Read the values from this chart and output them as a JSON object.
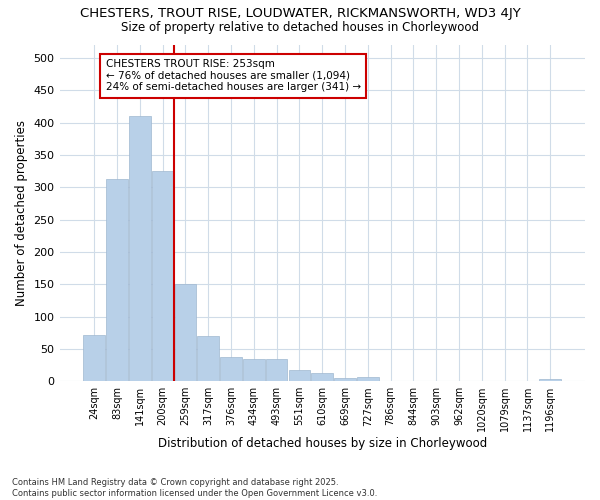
{
  "title": "CHESTERS, TROUT RISE, LOUDWATER, RICKMANSWORTH, WD3 4JY",
  "subtitle": "Size of property relative to detached houses in Chorleywood",
  "xlabel": "Distribution of detached houses by size in Chorleywood",
  "ylabel": "Number of detached properties",
  "categories": [
    "24sqm",
    "83sqm",
    "141sqm",
    "200sqm",
    "259sqm",
    "317sqm",
    "376sqm",
    "434sqm",
    "493sqm",
    "551sqm",
    "610sqm",
    "669sqm",
    "727sqm",
    "786sqm",
    "844sqm",
    "903sqm",
    "962sqm",
    "1020sqm",
    "1079sqm",
    "1137sqm",
    "1196sqm"
  ],
  "values": [
    72,
    313,
    410,
    325,
    150,
    70,
    37,
    35,
    35,
    18,
    12,
    5,
    7,
    0,
    0,
    0,
    0,
    0,
    0,
    0,
    3
  ],
  "bar_color": "#b8d0e8",
  "bar_edge_color": "#a0b8d0",
  "vline_x": 3.5,
  "vline_color": "#cc0000",
  "annotation_text": "CHESTERS TROUT RISE: 253sqm\n← 76% of detached houses are smaller (1,094)\n24% of semi-detached houses are larger (341) →",
  "annotation_box_color": "#ffffff",
  "annotation_box_edgecolor": "#cc0000",
  "background_color": "#ffffff",
  "grid_color": "#d0dce8",
  "footer": "Contains HM Land Registry data © Crown copyright and database right 2025.\nContains public sector information licensed under the Open Government Licence v3.0.",
  "ylim": [
    0,
    520
  ],
  "yticks": [
    0,
    50,
    100,
    150,
    200,
    250,
    300,
    350,
    400,
    450,
    500
  ]
}
